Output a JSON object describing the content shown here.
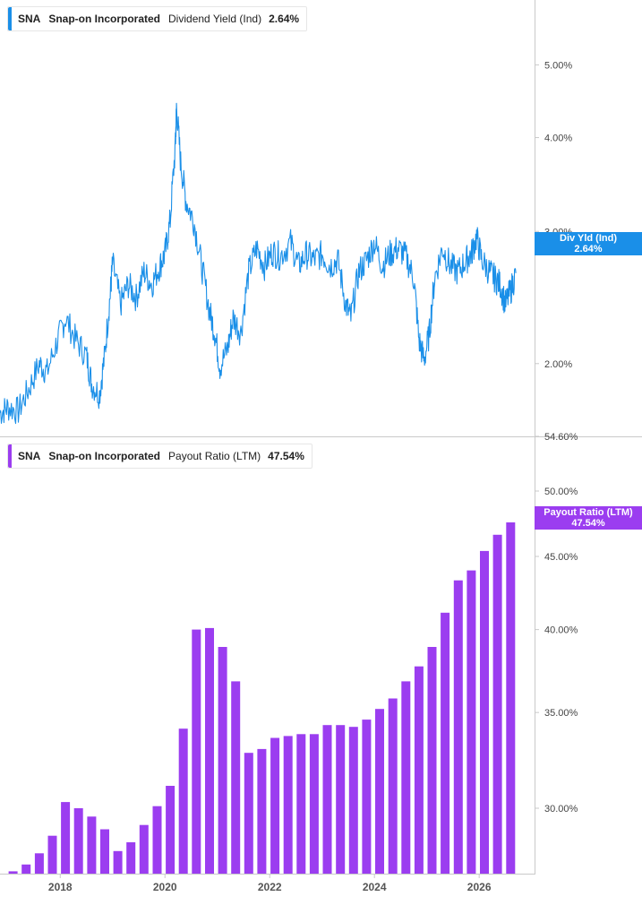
{
  "panels": [
    {
      "ticker": "SNA",
      "company": "Snap-on Incorporated",
      "metric": "Dividend Yield (Ind)",
      "value": "2.64%",
      "flag_label": "Div Yld (Ind)",
      "color": "#1a8fe8",
      "y_ticks": [
        "5.00%",
        "4.00%",
        "3.00%",
        "2.00%"
      ]
    },
    {
      "ticker": "SNA",
      "company": "Snap-on Incorporated",
      "metric": "Payout Ratio (LTM)",
      "value": "47.54%",
      "flag_label": "Payout Ratio (LTM)",
      "color": "#9b3df0",
      "y_ticks": [
        "54.60%",
        "50.00%",
        "45.00%",
        "40.00%",
        "35.00%",
        "30.00%"
      ]
    }
  ],
  "x_ticks": [
    "2018",
    "2020",
    "2022",
    "2024",
    "2026"
  ],
  "chart_data": [
    {
      "type": "line",
      "title": "",
      "y_scale": "log",
      "x_range": [
        2016.85,
        2026.7
      ],
      "y_range": [
        1.6,
        6.1
      ],
      "series": [
        {
          "name": "Dividend Yield (Ind)",
          "color": "#1a8fe8",
          "x": [
            2016.85,
            2017.0,
            2017.2,
            2017.4,
            2017.6,
            2017.75,
            2017.95,
            2018.1,
            2018.3,
            2018.5,
            2018.6,
            2018.75,
            2018.85,
            2018.95,
            2019.0,
            2019.15,
            2019.3,
            2019.45,
            2019.6,
            2019.75,
            2019.9,
            2020.0,
            2020.1,
            2020.2,
            2020.22,
            2020.3,
            2020.4,
            2020.55,
            2020.7,
            2020.85,
            2020.95,
            2021.05,
            2021.2,
            2021.3,
            2021.45,
            2021.6,
            2021.75,
            2021.9,
            2022.05,
            2022.2,
            2022.4,
            2022.55,
            2022.7,
            2022.85,
            2023.0,
            2023.15,
            2023.3,
            2023.45,
            2023.55,
            2023.7,
            2023.85,
            2024.0,
            2024.15,
            2024.3,
            2024.45,
            2024.6,
            2024.75,
            2024.85,
            2024.95,
            2025.05,
            2025.15,
            2025.3,
            2025.45,
            2025.6,
            2025.75,
            2025.85,
            2025.95,
            2026.05,
            2026.2,
            2026.3,
            2026.4,
            2026.5,
            2026.6,
            2026.7
          ],
          "values": [
            1.72,
            1.75,
            1.73,
            1.85,
            2.0,
            1.95,
            2.15,
            2.3,
            2.15,
            2.05,
            1.88,
            1.82,
            2.05,
            2.45,
            2.72,
            2.4,
            2.55,
            2.45,
            2.65,
            2.55,
            2.7,
            2.8,
            3.1,
            3.9,
            4.4,
            3.7,
            3.3,
            3.1,
            2.7,
            2.35,
            2.2,
            1.98,
            2.1,
            2.3,
            2.2,
            2.65,
            2.85,
            2.7,
            2.82,
            2.78,
            2.9,
            2.7,
            2.8,
            2.75,
            2.8,
            2.7,
            2.75,
            2.4,
            2.3,
            2.65,
            2.75,
            2.9,
            2.7,
            2.8,
            2.85,
            2.78,
            2.6,
            2.15,
            2.02,
            2.2,
            2.6,
            2.85,
            2.7,
            2.65,
            2.75,
            2.8,
            2.95,
            2.75,
            2.65,
            2.6,
            2.55,
            2.4,
            2.5,
            2.64
          ]
        }
      ]
    },
    {
      "type": "bar",
      "title": "",
      "y_scale": "log",
      "x_range": [
        2016.85,
        2026.7
      ],
      "y_range": [
        27.0,
        54.6
      ],
      "series": [
        {
          "name": "Payout Ratio (LTM)",
          "color": "#9b3df0",
          "x": [
            2016.85,
            2017.1,
            2017.35,
            2017.6,
            2017.85,
            2018.1,
            2018.35,
            2018.6,
            2018.85,
            2019.1,
            2019.35,
            2019.6,
            2019.85,
            2020.1,
            2020.35,
            2020.6,
            2020.85,
            2021.1,
            2021.35,
            2021.6,
            2021.85,
            2022.1,
            2022.35,
            2022.6,
            2022.85,
            2023.1,
            2023.35,
            2023.6,
            2023.85,
            2024.1,
            2024.35,
            2024.6,
            2024.85,
            2025.1,
            2025.35,
            2025.6,
            2025.85,
            2026.1,
            2026.35,
            2026.6
          ],
          "values": [
            26.8,
            27.1,
            27.4,
            27.9,
            28.7,
            30.3,
            30.0,
            29.6,
            29.0,
            28.0,
            28.4,
            29.2,
            30.1,
            31.1,
            34.1,
            40.0,
            40.1,
            38.9,
            36.8,
            32.8,
            33.0,
            33.6,
            33.7,
            33.8,
            33.8,
            34.3,
            34.3,
            34.2,
            34.6,
            35.2,
            35.8,
            36.8,
            37.7,
            38.9,
            41.1,
            43.3,
            44.0,
            45.4,
            46.6,
            47.54
          ]
        }
      ]
    }
  ]
}
